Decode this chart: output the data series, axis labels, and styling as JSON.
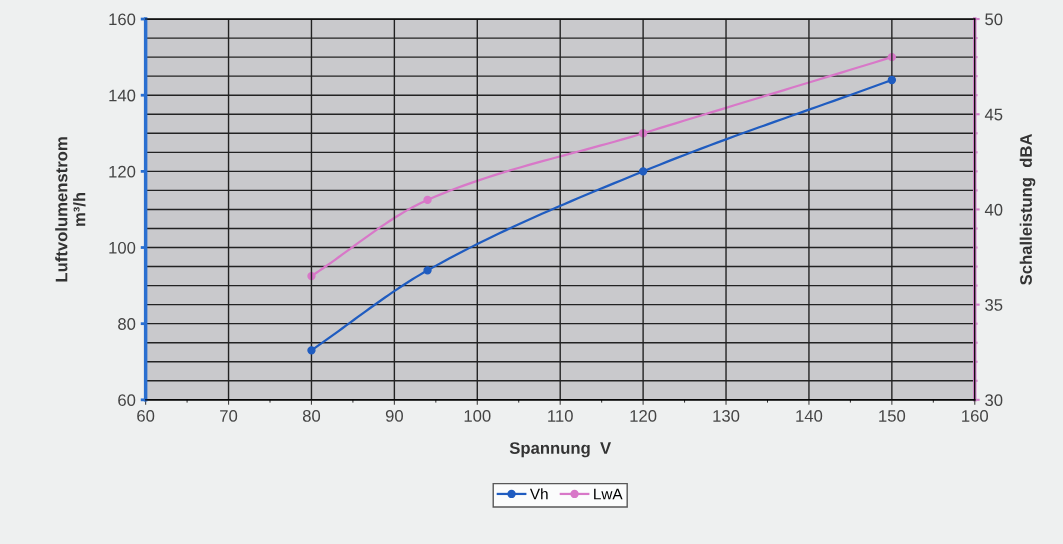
{
  "chart_data": {
    "type": "line",
    "xlabel": "Spannung  V",
    "ylabel": "Luftvolumenstrom\nm³/h",
    "y2label": "Schalleistung  dBA",
    "x": [
      80,
      94,
      120,
      150
    ],
    "series": [
      {
        "name": "Vh",
        "color": "#1f5cc0",
        "values": [
          73,
          94,
          120,
          144
        ]
      },
      {
        "name": "LwA",
        "color": "#d878c8",
        "values": [
          36.5,
          40.5,
          44,
          48
        ],
        "axis": "y2"
      }
    ],
    "xlim": [
      60,
      160
    ],
    "xticks": [
      60,
      70,
      80,
      90,
      100,
      110,
      120,
      130,
      140,
      150,
      160
    ],
    "ylim": [
      60,
      160
    ],
    "yticks": [
      60,
      80,
      100,
      120,
      140,
      160
    ],
    "y2lim": [
      30,
      50
    ],
    "y2ticks": [
      30,
      35,
      40,
      45,
      50
    ],
    "grid": true,
    "legend": "bottom",
    "marker": "circle",
    "line_style": "solid"
  }
}
